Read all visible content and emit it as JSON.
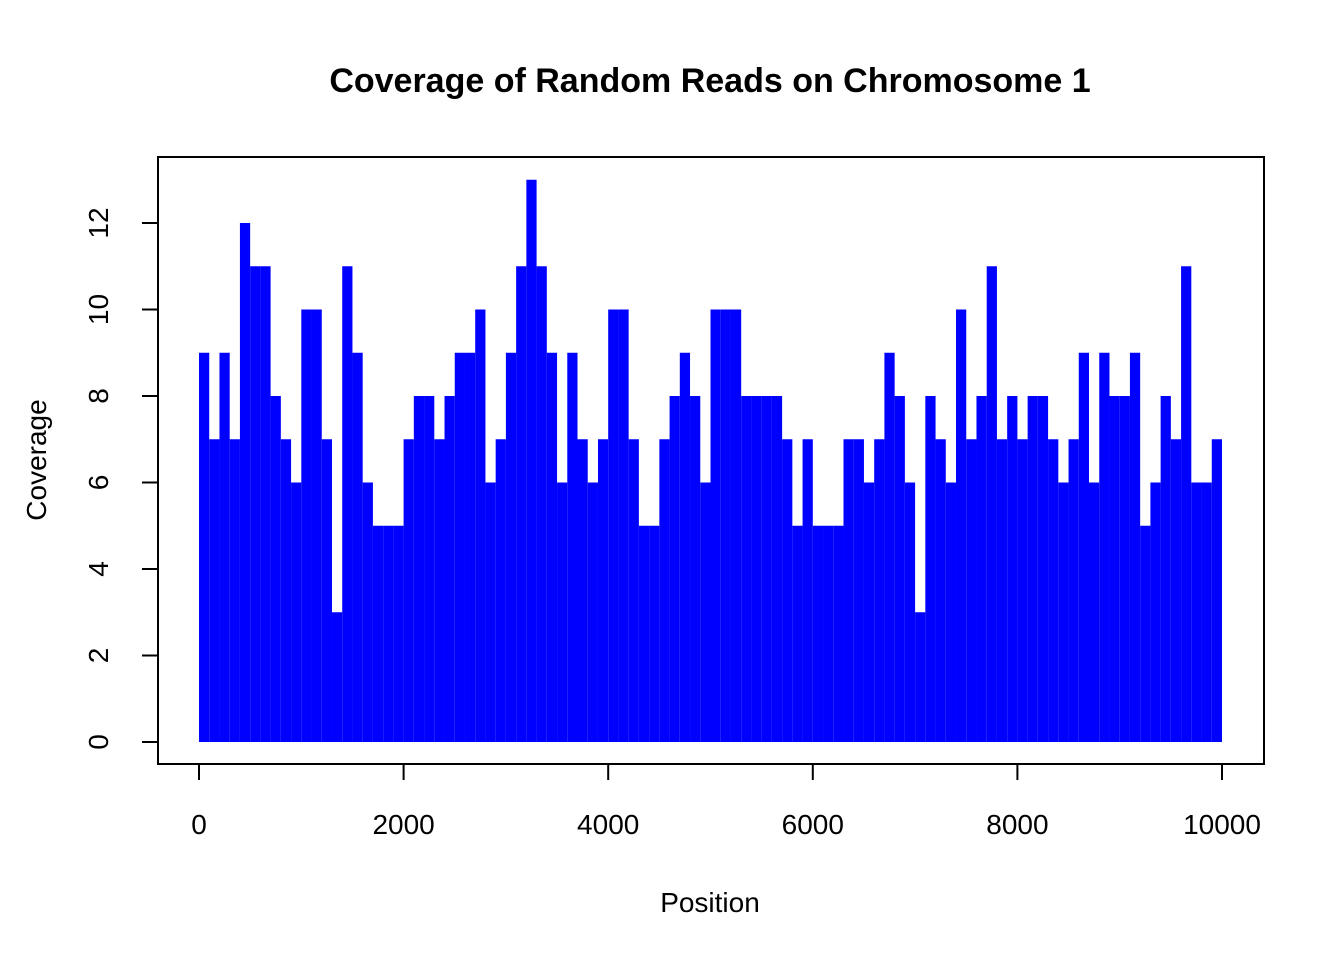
{
  "chart_data": {
    "type": "bar",
    "title": "Coverage of Random Reads on Chromosome 1",
    "xlabel": "Position",
    "ylabel": "Coverage",
    "xlim": [
      0,
      10000
    ],
    "ylim": [
      0,
      13
    ],
    "x_ticks": [
      0,
      2000,
      4000,
      6000,
      8000,
      10000
    ],
    "y_ticks": [
      0,
      2,
      4,
      6,
      8,
      10,
      12
    ],
    "color": "#0000FF",
    "grid": false,
    "legend": "none",
    "x_bin_width": 100,
    "series": [
      {
        "x_start": [
          0,
          100,
          200,
          300,
          400,
          500,
          600,
          700,
          800,
          900,
          1000,
          1100,
          1200,
          1300,
          1400,
          1500,
          1600,
          1700,
          1800,
          1900,
          2000,
          2100,
          2200,
          2300,
          2400,
          2500,
          2600,
          2700,
          2800,
          2900,
          3000,
          3100,
          3200,
          3300,
          3400,
          3500,
          3600,
          3700,
          3800,
          3900,
          4000,
          4100,
          4200,
          4300,
          4400,
          4500,
          4600,
          4700,
          4800,
          4900,
          5000,
          5100,
          5200,
          5300,
          5400,
          5500,
          5600,
          5700,
          5800,
          5900,
          6000,
          6100,
          6200,
          6300,
          6400,
          6500,
          6600,
          6700,
          6800,
          6900,
          7000,
          7100,
          7200,
          7300,
          7400,
          7500,
          7600,
          7700,
          7800,
          7900,
          8000,
          8100,
          8200,
          8300,
          8400,
          8500,
          8600,
          8700,
          8800,
          8900,
          9000,
          9100,
          9200,
          9300,
          9400,
          9500,
          9600,
          9700,
          9800,
          9900
        ],
        "max_coverage": [
          9,
          7,
          9,
          7,
          12,
          11,
          11,
          8,
          7,
          6,
          10,
          10,
          7,
          3,
          11,
          9,
          6,
          5,
          5,
          5,
          7,
          8,
          8,
          7,
          8,
          9,
          9,
          10,
          6,
          7,
          9,
          11,
          13,
          11,
          9,
          6,
          9,
          7,
          6,
          7,
          10,
          10,
          7,
          5,
          5,
          7,
          8,
          9,
          8,
          6,
          10,
          10,
          10,
          8,
          8,
          8,
          8,
          7,
          5,
          7,
          5,
          5,
          5,
          7,
          7,
          6,
          7,
          9,
          8,
          6,
          3,
          8,
          7,
          6,
          10,
          7,
          8,
          11,
          7,
          8,
          7,
          8,
          8,
          7,
          6,
          7,
          9,
          6,
          9,
          8,
          8,
          9,
          5,
          6,
          8,
          7,
          11,
          6,
          6,
          7
        ],
        "min_coverage": [
          0,
          0,
          0,
          0,
          0,
          0,
          0,
          0,
          0,
          0,
          0,
          0,
          0,
          0,
          0,
          0,
          0,
          0,
          0,
          0,
          0,
          0,
          0,
          0,
          0,
          0,
          0,
          0,
          0,
          0,
          0,
          0,
          0,
          0,
          0,
          0,
          0,
          0,
          0,
          0,
          0,
          0,
          0,
          0,
          0,
          0,
          0,
          0,
          0,
          0,
          0,
          0,
          0,
          0,
          0,
          0,
          0,
          0,
          0,
          0,
          0,
          0,
          0,
          0,
          0,
          0,
          0,
          0,
          0,
          0,
          0,
          0,
          0,
          0,
          0,
          0,
          0,
          0,
          0,
          0,
          0,
          0,
          0,
          0,
          0,
          0,
          0,
          0,
          0,
          0,
          0,
          0,
          0,
          0,
          0,
          0,
          0,
          0,
          0,
          0
        ]
      }
    ]
  }
}
